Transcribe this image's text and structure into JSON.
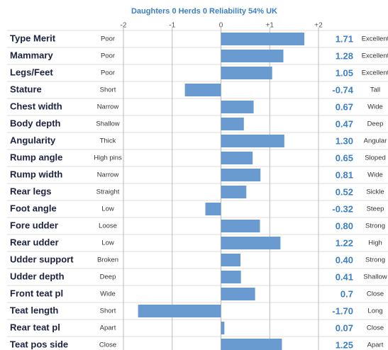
{
  "chart_data": {
    "type": "bar",
    "orientation": "horizontal",
    "subtitle": "Daughters 0  Herds 0  Reliability 54%  UK",
    "categories": [
      "Type Merit",
      "Mammary",
      "Legs/Feet",
      "Stature",
      "Chest width",
      "Body depth",
      "Angularity",
      "Rump angle",
      "Rump width",
      "Rear legs",
      "Foot angle",
      "Fore udder",
      "Rear udder",
      "Udder support",
      "Udder depth",
      "Front teat pl",
      "Teat length",
      "Rear teat pl",
      "Teat pos side"
    ],
    "low_labels": [
      "Poor",
      "Poor",
      "Poor",
      "Short",
      "Narrow",
      "Shallow",
      "Thick",
      "High pins",
      "Narrow",
      "Straight",
      "Low",
      "Loose",
      "Low",
      "Broken",
      "Deep",
      "Wide",
      "Short",
      "Apart",
      "Close"
    ],
    "high_labels": [
      "Excellent",
      "Excellent",
      "Excellent",
      "Tall",
      "Wide",
      "Deep",
      "Angular",
      "Sloped",
      "Wide",
      "Sickle",
      "Steep",
      "Strong",
      "High",
      "Strong",
      "Shallow",
      "Close",
      "Long",
      "Close",
      "Apart"
    ],
    "values": [
      1.71,
      1.28,
      1.05,
      -0.74,
      0.67,
      0.47,
      1.3,
      0.65,
      0.81,
      0.52,
      -0.32,
      0.8,
      1.22,
      0.4,
      0.41,
      0.7,
      -1.7,
      0.07,
      1.25
    ],
    "value_labels": [
      "1.71",
      "1.28",
      "1.05",
      "-0.74",
      "0.67",
      "0.47",
      "1.30",
      "0.65",
      "0.81",
      "0.52",
      "-0.32",
      "0.80",
      "1.22",
      "0.40",
      "0.41",
      "0.7",
      "-1.70",
      "0.07",
      "1.25"
    ],
    "color": "#6a9bd0",
    "xlim": [
      -2,
      2
    ],
    "xticks": [
      -2,
      -1,
      0,
      {
        "value": 1,
        "label": "+1"
      },
      {
        "value": 2,
        "label": "+2"
      }
    ],
    "grid": true
  }
}
